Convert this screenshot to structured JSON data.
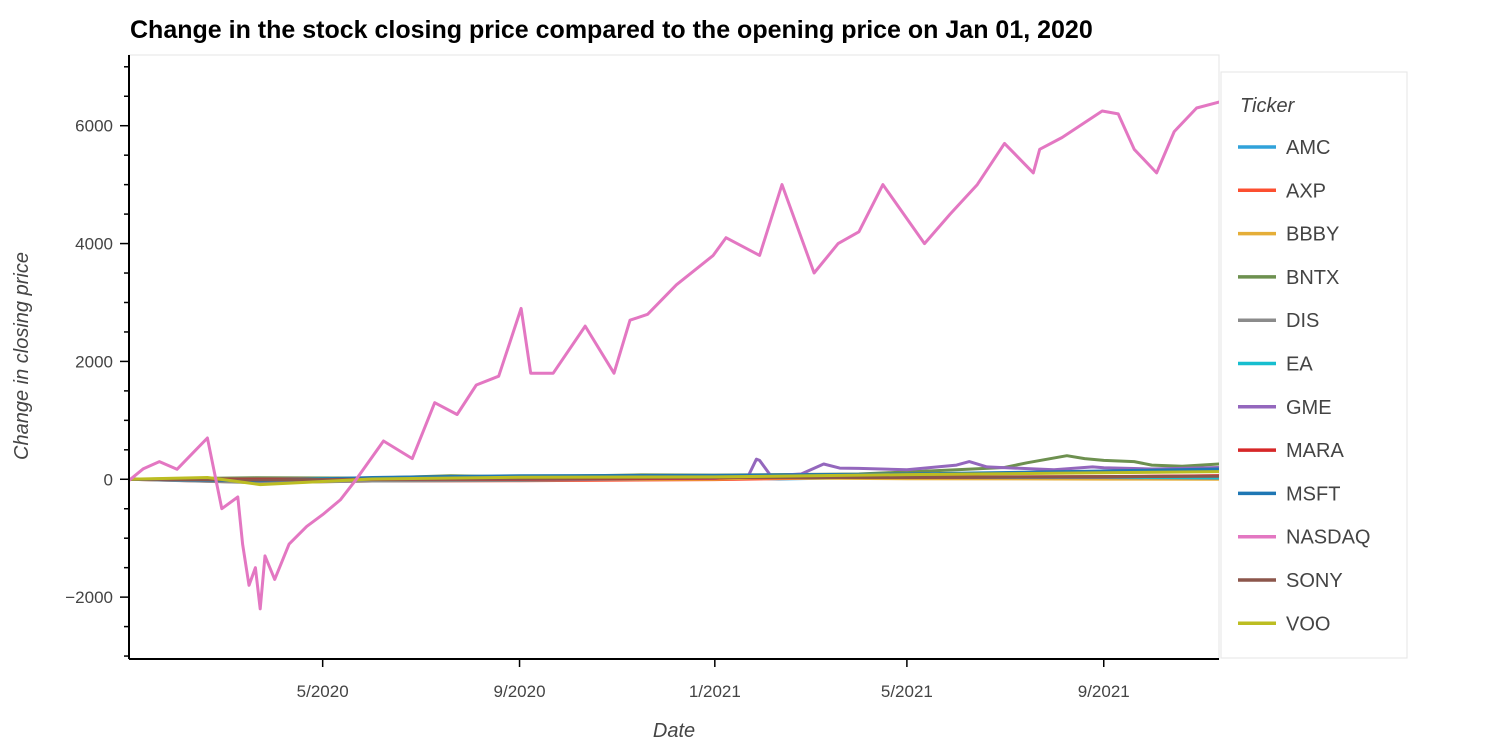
{
  "chart_data": {
    "type": "line",
    "title": "Change in the stock closing price compared to the opening price on Jan 01, 2020",
    "xlabel": "Date",
    "ylabel": "Change in closing price",
    "xlim": [
      "2020-01-01",
      "2021-11-12"
    ],
    "ylim": [
      -3050,
      7200
    ],
    "x_ticks": [
      {
        "date": "2020-05-01",
        "label": "5/2020"
      },
      {
        "date": "2020-09-01",
        "label": "9/2020"
      },
      {
        "date": "2021-01-01",
        "label": "1/2021"
      },
      {
        "date": "2021-05-01",
        "label": "5/2021"
      },
      {
        "date": "2021-09-01",
        "label": "9/2021"
      }
    ],
    "y_ticks": [
      {
        "value": -2000,
        "label": "−2000"
      },
      {
        "value": 0,
        "label": "0"
      },
      {
        "value": 2000,
        "label": "2000"
      },
      {
        "value": 4000,
        "label": "4000"
      },
      {
        "value": 6000,
        "label": "6000"
      }
    ],
    "grid": false,
    "legend": {
      "title": "Ticker",
      "placement": "right"
    },
    "series": [
      {
        "name": "AMC",
        "color": "#30a2da",
        "points": [
          [
            "2020-01-01",
            0
          ],
          [
            "2020-03-20",
            -5
          ],
          [
            "2020-06-01",
            -3
          ],
          [
            "2020-09-01",
            -3
          ],
          [
            "2021-01-01",
            -2
          ],
          [
            "2021-01-27",
            15
          ],
          [
            "2021-02-10",
            5
          ],
          [
            "2021-06-02",
            55
          ],
          [
            "2021-06-15",
            40
          ],
          [
            "2021-09-01",
            35
          ],
          [
            "2021-11-12",
            30
          ]
        ]
      },
      {
        "name": "AXP",
        "color": "#fc4f30",
        "points": [
          [
            "2020-01-01",
            0
          ],
          [
            "2020-03-23",
            -55
          ],
          [
            "2020-06-01",
            -30
          ],
          [
            "2020-09-01",
            -25
          ],
          [
            "2021-01-01",
            -5
          ],
          [
            "2021-05-01",
            40
          ],
          [
            "2021-09-01",
            45
          ],
          [
            "2021-11-12",
            60
          ]
        ]
      },
      {
        "name": "BBBY",
        "color": "#e5ae38",
        "points": [
          [
            "2020-01-01",
            0
          ],
          [
            "2020-04-01",
            -12
          ],
          [
            "2020-09-01",
            -2
          ],
          [
            "2021-01-01",
            3
          ],
          [
            "2021-01-27",
            25
          ],
          [
            "2021-05-01",
            10
          ],
          [
            "2021-09-01",
            3
          ],
          [
            "2021-11-12",
            2
          ]
        ]
      },
      {
        "name": "BNTX",
        "color": "#6d904f",
        "points": [
          [
            "2020-01-01",
            0
          ],
          [
            "2020-03-20",
            25
          ],
          [
            "2020-06-01",
            20
          ],
          [
            "2020-07-20",
            60
          ],
          [
            "2020-09-01",
            40
          ],
          [
            "2020-11-16",
            75
          ],
          [
            "2021-01-01",
            70
          ],
          [
            "2021-04-01",
            90
          ],
          [
            "2021-06-01",
            160
          ],
          [
            "2021-07-01",
            200
          ],
          [
            "2021-07-15",
            280
          ],
          [
            "2021-08-09",
            400
          ],
          [
            "2021-08-20",
            350
          ],
          [
            "2021-09-01",
            320
          ],
          [
            "2021-09-20",
            300
          ],
          [
            "2021-10-01",
            240
          ],
          [
            "2021-10-20",
            220
          ],
          [
            "2021-11-12",
            260
          ]
        ]
      },
      {
        "name": "DIS",
        "color": "#8b8b8b",
        "points": [
          [
            "2020-01-01",
            0
          ],
          [
            "2020-03-23",
            -60
          ],
          [
            "2020-06-01",
            -30
          ],
          [
            "2020-09-01",
            -20
          ],
          [
            "2021-01-01",
            30
          ],
          [
            "2021-03-08",
            50
          ],
          [
            "2021-06-01",
            30
          ],
          [
            "2021-09-01",
            30
          ],
          [
            "2021-11-12",
            15
          ]
        ]
      },
      {
        "name": "EA",
        "color": "#17becf",
        "points": [
          [
            "2020-01-01",
            0
          ],
          [
            "2020-03-20",
            -5
          ],
          [
            "2020-06-01",
            20
          ],
          [
            "2020-09-01",
            30
          ],
          [
            "2021-01-01",
            35
          ],
          [
            "2021-05-01",
            30
          ],
          [
            "2021-09-01",
            35
          ],
          [
            "2021-11-12",
            25
          ]
        ]
      },
      {
        "name": "GME",
        "color": "#9467bd",
        "points": [
          [
            "2020-01-01",
            0
          ],
          [
            "2020-09-01",
            5
          ],
          [
            "2021-01-01",
            15
          ],
          [
            "2021-01-22",
            60
          ],
          [
            "2021-01-27",
            340
          ],
          [
            "2021-01-29",
            320
          ],
          [
            "2021-02-05",
            60
          ],
          [
            "2021-02-24",
            90
          ],
          [
            "2021-03-10",
            260
          ],
          [
            "2021-03-20",
            190
          ],
          [
            "2021-04-01",
            185
          ],
          [
            "2021-05-01",
            160
          ],
          [
            "2021-06-01",
            240
          ],
          [
            "2021-06-09",
            300
          ],
          [
            "2021-06-20",
            210
          ],
          [
            "2021-08-01",
            160
          ],
          [
            "2021-08-25",
            210
          ],
          [
            "2021-09-01",
            195
          ],
          [
            "2021-10-01",
            175
          ],
          [
            "2021-11-12",
            200
          ]
        ]
      },
      {
        "name": "MARA",
        "color": "#d62728",
        "points": [
          [
            "2020-01-01",
            0
          ],
          [
            "2020-09-01",
            1
          ],
          [
            "2021-01-01",
            20
          ],
          [
            "2021-02-15",
            50
          ],
          [
            "2021-05-01",
            30
          ],
          [
            "2021-09-01",
            40
          ],
          [
            "2021-11-12",
            60
          ]
        ]
      },
      {
        "name": "MSFT",
        "color": "#1f77b4",
        "points": [
          [
            "2020-01-01",
            0
          ],
          [
            "2020-03-20",
            -25
          ],
          [
            "2020-06-01",
            30
          ],
          [
            "2020-09-01",
            60
          ],
          [
            "2021-01-01",
            65
          ],
          [
            "2021-05-01",
            90
          ],
          [
            "2021-09-01",
            140
          ],
          [
            "2021-11-12",
            175
          ]
        ]
      },
      {
        "name": "NASDAQ",
        "color": "#e377c2",
        "points": [
          [
            "2020-01-01",
            -20
          ],
          [
            "2020-01-10",
            180
          ],
          [
            "2020-01-20",
            300
          ],
          [
            "2020-01-31",
            170
          ],
          [
            "2020-02-10",
            450
          ],
          [
            "2020-02-19",
            700
          ],
          [
            "2020-02-28",
            -500
          ],
          [
            "2020-03-09",
            -300
          ],
          [
            "2020-03-12",
            -1100
          ],
          [
            "2020-03-16",
            -1800
          ],
          [
            "2020-03-20",
            -1500
          ],
          [
            "2020-03-23",
            -2200
          ],
          [
            "2020-03-26",
            -1300
          ],
          [
            "2020-04-01",
            -1700
          ],
          [
            "2020-04-10",
            -1100
          ],
          [
            "2020-04-21",
            -800
          ],
          [
            "2020-05-01",
            -600
          ],
          [
            "2020-05-12",
            -350
          ],
          [
            "2020-05-22",
            0
          ],
          [
            "2020-06-08",
            650
          ],
          [
            "2020-06-26",
            350
          ],
          [
            "2020-07-10",
            1300
          ],
          [
            "2020-07-24",
            1100
          ],
          [
            "2020-08-05",
            1600
          ],
          [
            "2020-08-19",
            1750
          ],
          [
            "2020-09-02",
            2900
          ],
          [
            "2020-09-08",
            1800
          ],
          [
            "2020-09-22",
            1800
          ],
          [
            "2020-10-12",
            2600
          ],
          [
            "2020-10-30",
            1800
          ],
          [
            "2020-11-09",
            2700
          ],
          [
            "2020-11-20",
            2800
          ],
          [
            "2020-12-08",
            3300
          ],
          [
            "2020-12-31",
            3800
          ],
          [
            "2021-01-08",
            4100
          ],
          [
            "2021-01-29",
            3800
          ],
          [
            "2021-02-12",
            5000
          ],
          [
            "2021-03-04",
            3500
          ],
          [
            "2021-03-19",
            4000
          ],
          [
            "2021-04-01",
            4200
          ],
          [
            "2021-04-16",
            5000
          ],
          [
            "2021-05-12",
            4000
          ],
          [
            "2021-05-28",
            4500
          ],
          [
            "2021-06-14",
            5000
          ],
          [
            "2021-07-01",
            5700
          ],
          [
            "2021-07-19",
            5200
          ],
          [
            "2021-07-23",
            5600
          ],
          [
            "2021-08-06",
            5800
          ],
          [
            "2021-08-31",
            6250
          ],
          [
            "2021-09-10",
            6200
          ],
          [
            "2021-09-20",
            5600
          ],
          [
            "2021-10-04",
            5200
          ],
          [
            "2021-10-15",
            5900
          ],
          [
            "2021-10-29",
            6300
          ],
          [
            "2021-11-12",
            6400
          ]
        ]
      },
      {
        "name": "SONY",
        "color": "#8c564b",
        "points": [
          [
            "2020-01-01",
            0
          ],
          [
            "2020-03-23",
            -10
          ],
          [
            "2020-06-01",
            0
          ],
          [
            "2020-09-01",
            10
          ],
          [
            "2021-01-01",
            30
          ],
          [
            "2021-05-01",
            30
          ],
          [
            "2021-09-01",
            45
          ],
          [
            "2021-11-12",
            50
          ]
        ]
      },
      {
        "name": "VOO",
        "color": "#bcbd22",
        "points": [
          [
            "2020-01-01",
            0
          ],
          [
            "2020-02-19",
            30
          ],
          [
            "2020-03-23",
            -90
          ],
          [
            "2020-06-01",
            5
          ],
          [
            "2020-09-01",
            35
          ],
          [
            "2021-01-01",
            40
          ],
          [
            "2021-05-01",
            80
          ],
          [
            "2021-09-01",
            110
          ],
          [
            "2021-11-12",
            130
          ]
        ]
      }
    ]
  }
}
